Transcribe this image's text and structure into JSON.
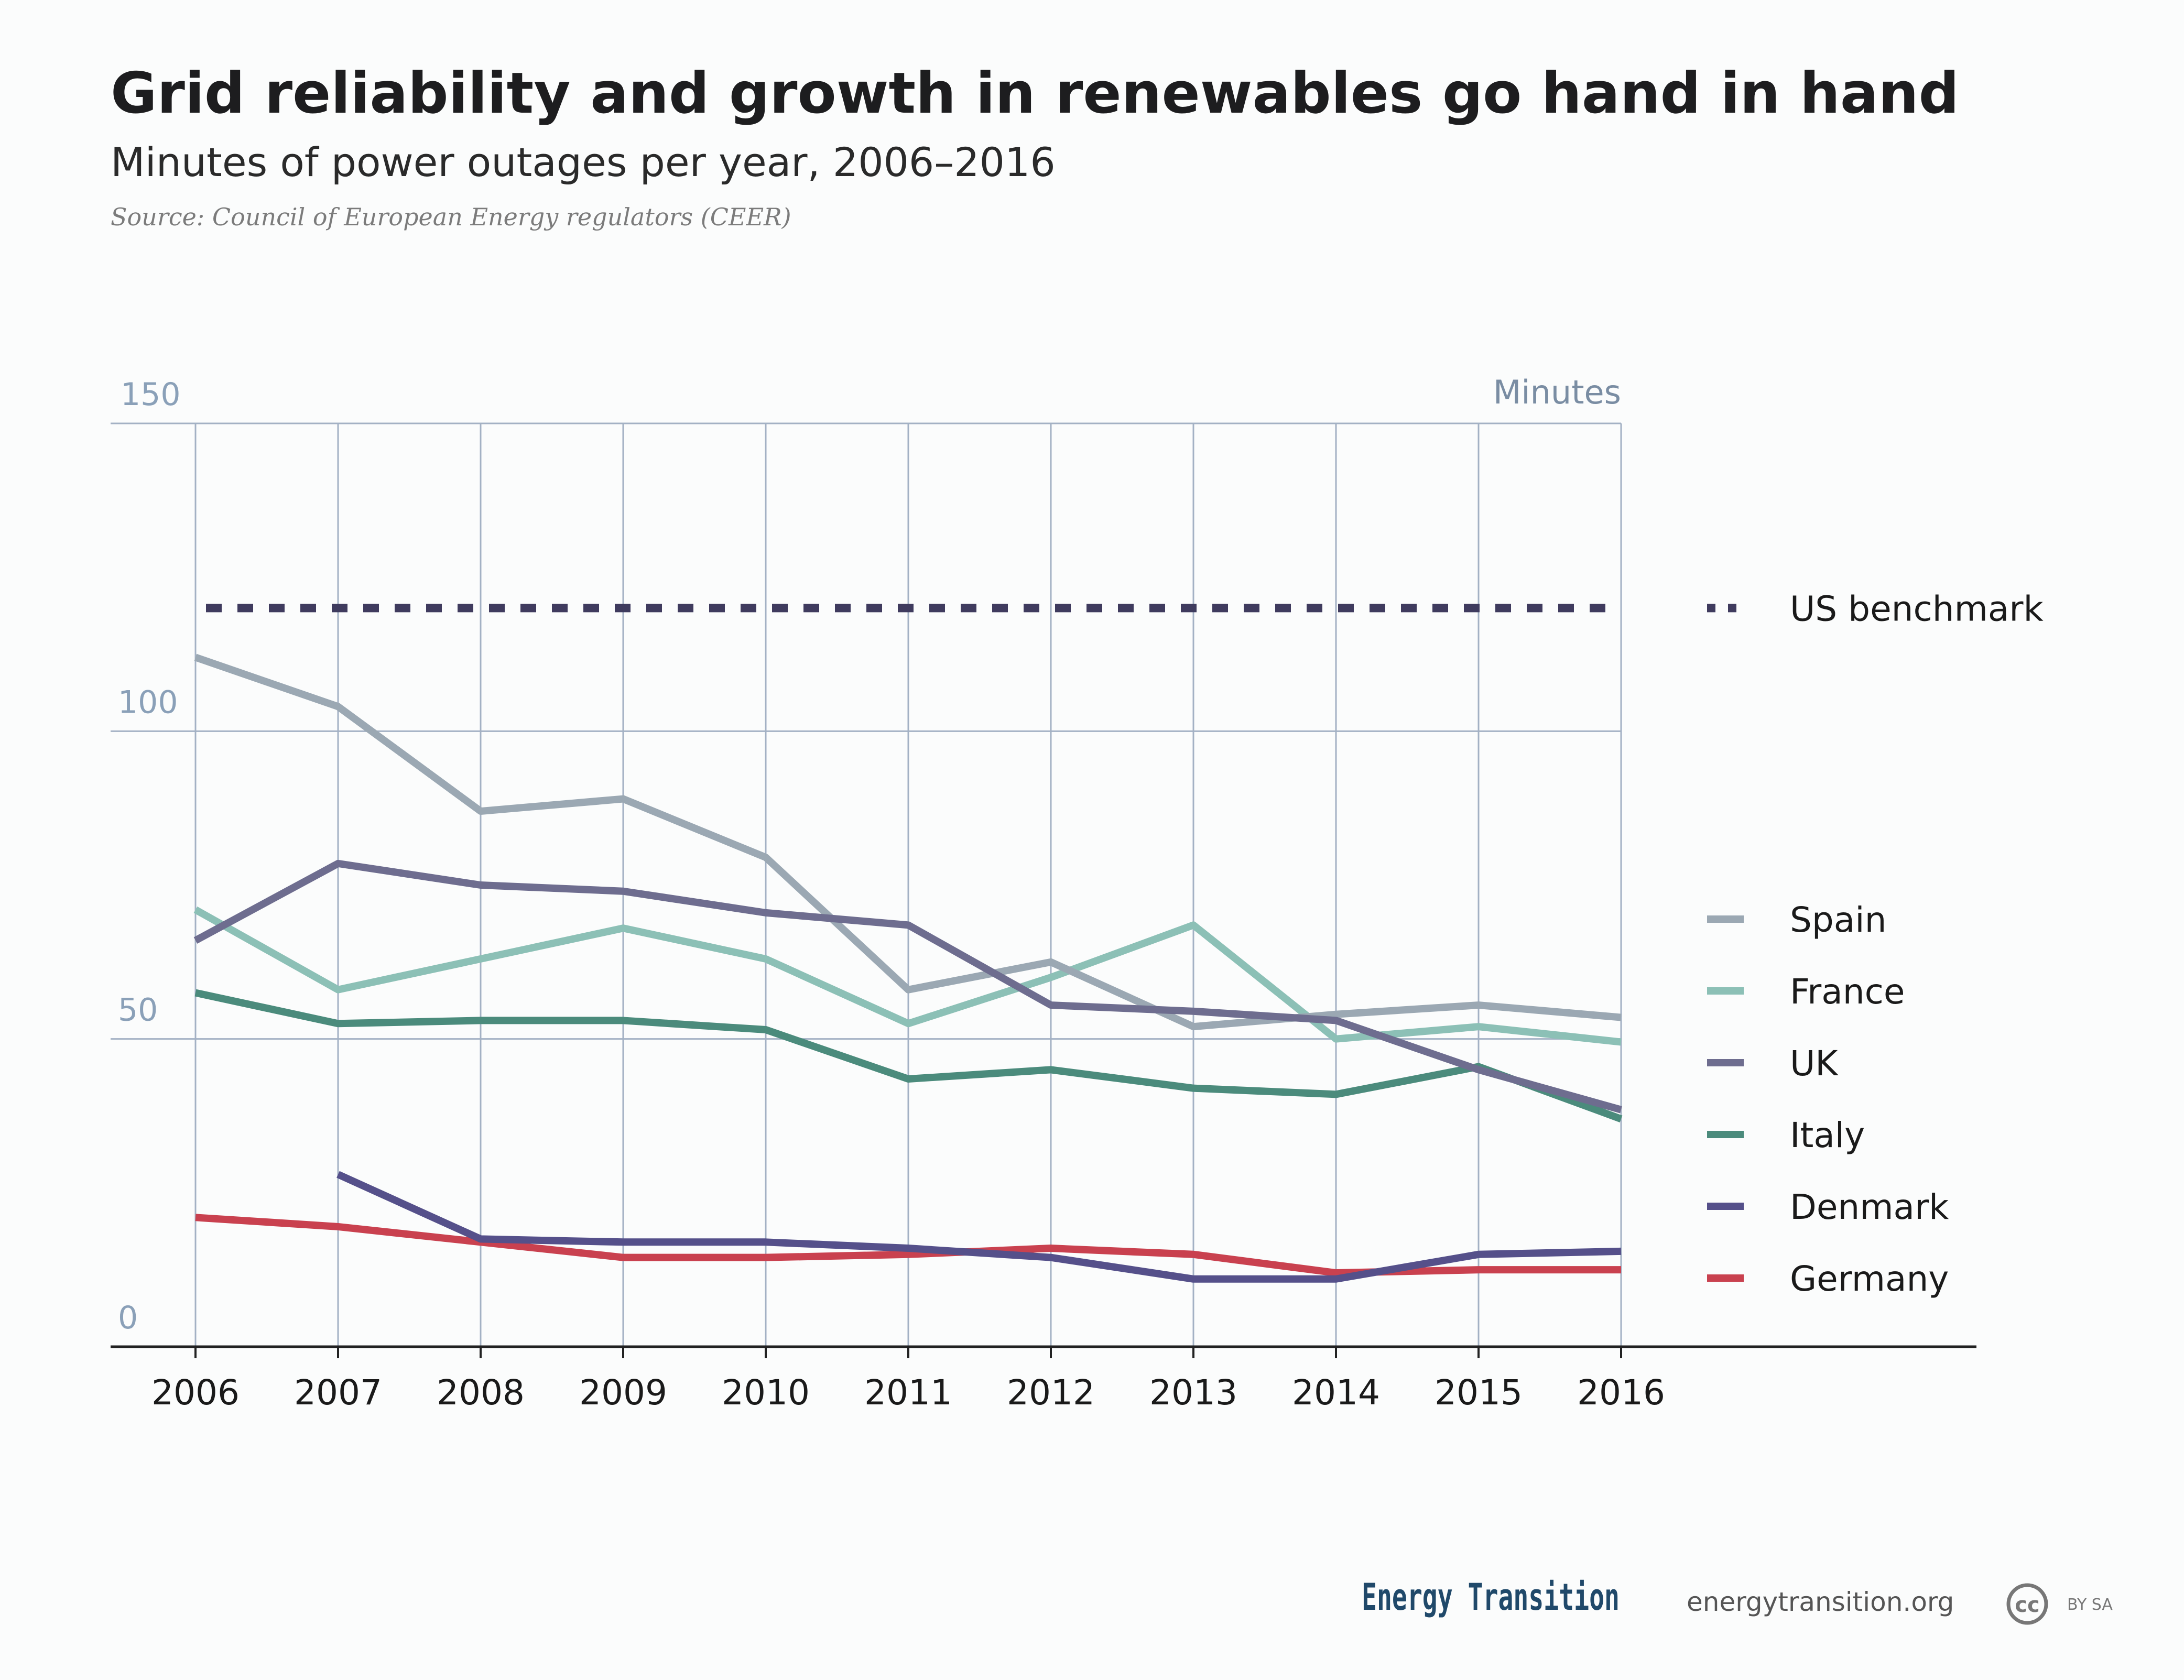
{
  "header": {
    "title": "Grid reliability and growth in renewables go hand in hand",
    "subtitle": "Minutes of power outages per year, 2006–2016",
    "source": "Source: Council of European Energy regulators (CEER)"
  },
  "footer": {
    "brand": "Energy Transition",
    "url": "energytransition.org",
    "license_mark": "cc",
    "license_text": "BY SA"
  },
  "colors": {
    "Spain": "#9ba8b3",
    "France": "#8cc0b6",
    "UK": "#6e6d8f",
    "Italy": "#4b8b7c",
    "Denmark": "#55508a",
    "Germany": "#c9414f",
    "US benchmark": "#3f3b5e",
    "grid": "#a3b1c4",
    "axis": "#222222"
  },
  "chart_data": {
    "type": "line",
    "title": "Grid reliability and growth in renewables go hand in hand",
    "subtitle": "Minutes of power outages per year, 2006–2016",
    "xlabel": "",
    "ylabel": "Minutes",
    "ylim": [
      0,
      150
    ],
    "yticks": [
      "0",
      "50",
      "100",
      "150"
    ],
    "x": [
      2006,
      2007,
      2008,
      2009,
      2010,
      2011,
      2012,
      2013,
      2014,
      2015,
      2016
    ],
    "xticks": [
      "2006",
      "2007",
      "2008",
      "2009",
      "2010",
      "2011",
      "2012",
      "2013",
      "2014",
      "2015",
      "2016"
    ],
    "grid": true,
    "legend": "right",
    "series": [
      {
        "name": "US benchmark",
        "style": "dotted",
        "values": [
          120,
          120,
          120,
          120,
          120,
          120,
          120,
          120,
          120,
          120,
          120
        ]
      },
      {
        "name": "Spain",
        "values": [
          112,
          104,
          87,
          89,
          79.5,
          58,
          62.5,
          52,
          54,
          55.5,
          53.5
        ]
      },
      {
        "name": "France",
        "values": [
          71,
          58,
          63,
          68,
          63,
          52.5,
          60,
          68.5,
          50,
          52,
          49.5
        ]
      },
      {
        "name": "UK",
        "values": [
          66,
          78.5,
          75,
          74,
          70.5,
          68.5,
          55.5,
          54.5,
          53,
          45,
          38.5
        ]
      },
      {
        "name": "Italy",
        "values": [
          57.5,
          52.5,
          53,
          53,
          51.5,
          43.5,
          45,
          42,
          41,
          45.5,
          37
        ]
      },
      {
        "name": "Denmark",
        "values": [
          null,
          28,
          17.5,
          17,
          17,
          16,
          14.5,
          11,
          11,
          15,
          15.5
        ]
      },
      {
        "name": "Germany",
        "values": [
          21,
          19.5,
          17,
          14.5,
          14.5,
          15,
          16,
          15,
          12,
          12.5,
          12.5
        ]
      }
    ]
  }
}
